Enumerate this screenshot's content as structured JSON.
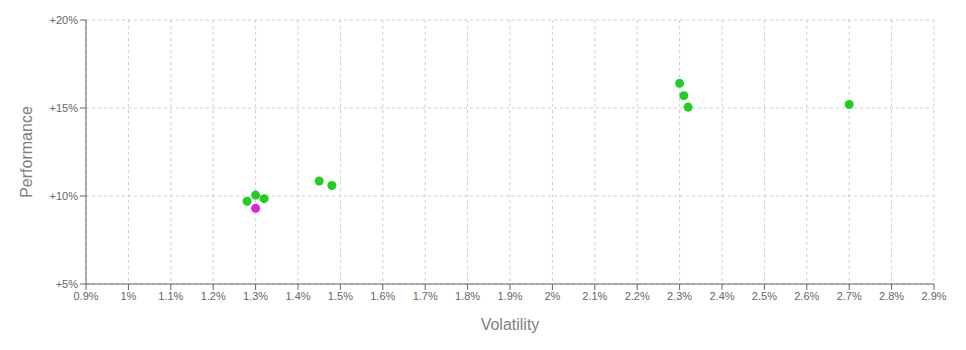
{
  "chart_data": {
    "type": "scatter",
    "xlabel": "Volatility",
    "ylabel": "Performance",
    "xlim": [
      0.009,
      0.029
    ],
    "ylim": [
      0.05,
      0.2
    ],
    "xticks": [
      {
        "value": 0.009,
        "label": "0.9%"
      },
      {
        "value": 0.01,
        "label": "1%"
      },
      {
        "value": 0.011,
        "label": "1.1%"
      },
      {
        "value": 0.012,
        "label": "1.2%"
      },
      {
        "value": 0.013,
        "label": "1.3%"
      },
      {
        "value": 0.014,
        "label": "1.4%"
      },
      {
        "value": 0.015,
        "label": "1.5%"
      },
      {
        "value": 0.016,
        "label": "1.6%"
      },
      {
        "value": 0.017,
        "label": "1.7%"
      },
      {
        "value": 0.018,
        "label": "1.8%"
      },
      {
        "value": 0.019,
        "label": "1.9%"
      },
      {
        "value": 0.02,
        "label": "2%"
      },
      {
        "value": 0.021,
        "label": "2.1%"
      },
      {
        "value": 0.022,
        "label": "2.2%"
      },
      {
        "value": 0.023,
        "label": "2.3%"
      },
      {
        "value": 0.024,
        "label": "2.4%"
      },
      {
        "value": 0.025,
        "label": "2.5%"
      },
      {
        "value": 0.026,
        "label": "2.6%"
      },
      {
        "value": 0.027,
        "label": "2.7%"
      },
      {
        "value": 0.028,
        "label": "2.8%"
      },
      {
        "value": 0.029,
        "label": "2.9%"
      }
    ],
    "yticks": [
      {
        "value": 0.05,
        "label": "+5%"
      },
      {
        "value": 0.1,
        "label": "+10%"
      },
      {
        "value": 0.15,
        "label": "+15%"
      },
      {
        "value": 0.2,
        "label": "+20%"
      }
    ],
    "grid": true,
    "series": [
      {
        "color": "#22cc22",
        "x": [
          0.013,
          0.0132,
          0.0128,
          0.0145,
          0.0148,
          0.023,
          0.0231,
          0.0232,
          0.027
        ],
        "values": [
          0.1005,
          0.0985,
          0.097,
          0.1085,
          0.106,
          0.164,
          0.157,
          0.1505,
          0.152
        ]
      },
      {
        "color": "#dd22dd",
        "x": [
          0.013
        ],
        "values": [
          0.093
        ]
      }
    ]
  }
}
